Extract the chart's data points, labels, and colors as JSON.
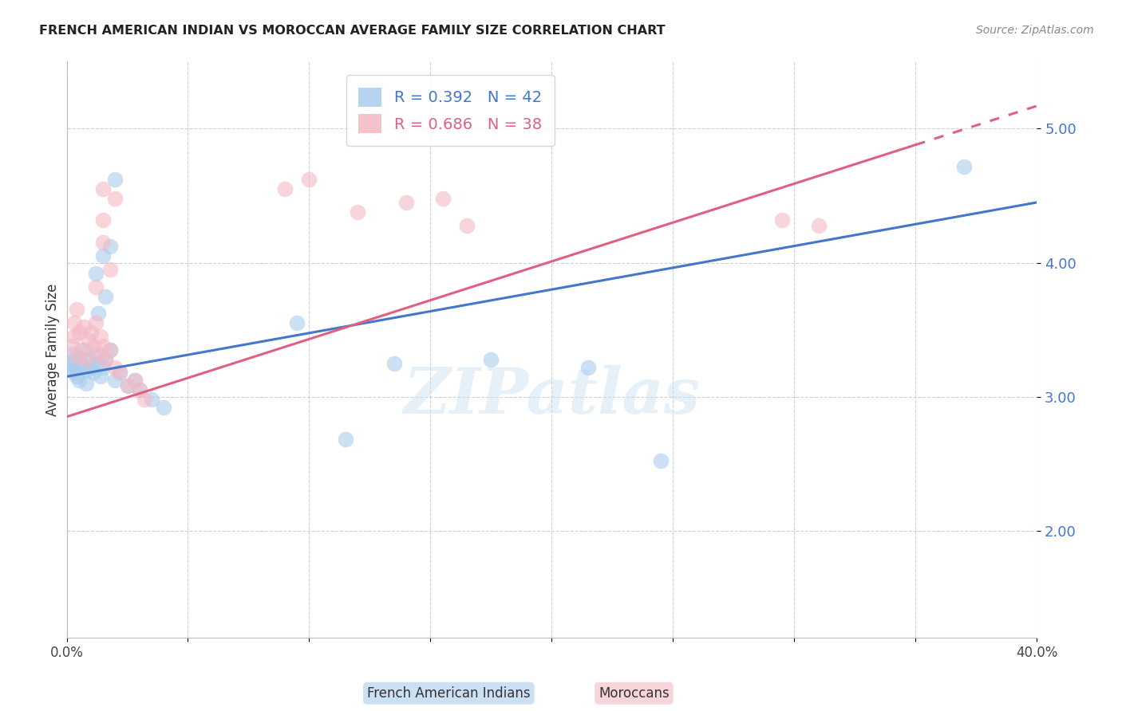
{
  "title": "FRENCH AMERICAN INDIAN VS MOROCCAN AVERAGE FAMILY SIZE CORRELATION CHART",
  "source": "Source: ZipAtlas.com",
  "ylabel": "Average Family Size",
  "xlim": [
    0.0,
    0.4
  ],
  "ylim": [
    1.2,
    5.5
  ],
  "yticks": [
    2.0,
    3.0,
    4.0,
    5.0
  ],
  "xticks": [
    0.0,
    0.05,
    0.1,
    0.15,
    0.2,
    0.25,
    0.3,
    0.35,
    0.4
  ],
  "xtick_labels": [
    "0.0%",
    "",
    "",
    "",
    "",
    "",
    "",
    "",
    "40.0%"
  ],
  "blue_color": "#aaccee",
  "pink_color": "#f4b8c4",
  "blue_line_color": "#4477cc",
  "pink_line_color": "#e06080",
  "watermark_text": "ZIPatlas",
  "blue_scatter": [
    [
      0.001,
      3.25
    ],
    [
      0.002,
      3.2
    ],
    [
      0.002,
      3.32
    ],
    [
      0.003,
      3.18
    ],
    [
      0.003,
      3.28
    ],
    [
      0.004,
      3.22
    ],
    [
      0.004,
      3.15
    ],
    [
      0.005,
      3.3
    ],
    [
      0.005,
      3.12
    ],
    [
      0.006,
      3.25
    ],
    [
      0.007,
      3.35
    ],
    [
      0.008,
      3.2
    ],
    [
      0.008,
      3.1
    ],
    [
      0.009,
      3.28
    ],
    [
      0.01,
      3.22
    ],
    [
      0.011,
      3.18
    ],
    [
      0.012,
      3.32
    ],
    [
      0.013,
      3.25
    ],
    [
      0.014,
      3.15
    ],
    [
      0.015,
      3.22
    ],
    [
      0.016,
      3.28
    ],
    [
      0.018,
      3.35
    ],
    [
      0.02,
      3.12
    ],
    [
      0.022,
      3.18
    ],
    [
      0.025,
      3.08
    ],
    [
      0.028,
      3.12
    ],
    [
      0.03,
      3.05
    ],
    [
      0.035,
      2.98
    ],
    [
      0.04,
      2.92
    ],
    [
      0.012,
      3.92
    ],
    [
      0.015,
      4.05
    ],
    [
      0.018,
      4.12
    ],
    [
      0.02,
      4.62
    ],
    [
      0.013,
      3.62
    ],
    [
      0.016,
      3.75
    ],
    [
      0.095,
      3.55
    ],
    [
      0.135,
      3.25
    ],
    [
      0.175,
      3.28
    ],
    [
      0.215,
      3.22
    ],
    [
      0.245,
      2.52
    ],
    [
      0.115,
      2.68
    ],
    [
      0.37,
      4.72
    ]
  ],
  "pink_scatter": [
    [
      0.002,
      3.38
    ],
    [
      0.003,
      3.45
    ],
    [
      0.003,
      3.55
    ],
    [
      0.004,
      3.3
    ],
    [
      0.004,
      3.65
    ],
    [
      0.005,
      3.48
    ],
    [
      0.006,
      3.35
    ],
    [
      0.007,
      3.52
    ],
    [
      0.008,
      3.28
    ],
    [
      0.009,
      3.42
    ],
    [
      0.01,
      3.48
    ],
    [
      0.011,
      3.38
    ],
    [
      0.012,
      3.55
    ],
    [
      0.013,
      3.32
    ],
    [
      0.014,
      3.45
    ],
    [
      0.015,
      3.38
    ],
    [
      0.016,
      3.28
    ],
    [
      0.018,
      3.35
    ],
    [
      0.02,
      3.22
    ],
    [
      0.022,
      3.18
    ],
    [
      0.025,
      3.08
    ],
    [
      0.028,
      3.12
    ],
    [
      0.03,
      3.05
    ],
    [
      0.032,
      2.98
    ],
    [
      0.012,
      3.82
    ],
    [
      0.015,
      4.15
    ],
    [
      0.018,
      3.95
    ],
    [
      0.02,
      4.48
    ],
    [
      0.015,
      4.32
    ],
    [
      0.09,
      4.55
    ],
    [
      0.1,
      4.62
    ],
    [
      0.12,
      4.38
    ],
    [
      0.14,
      4.45
    ],
    [
      0.155,
      4.48
    ],
    [
      0.165,
      4.28
    ],
    [
      0.295,
      4.32
    ],
    [
      0.31,
      4.28
    ],
    [
      0.015,
      4.55
    ]
  ]
}
